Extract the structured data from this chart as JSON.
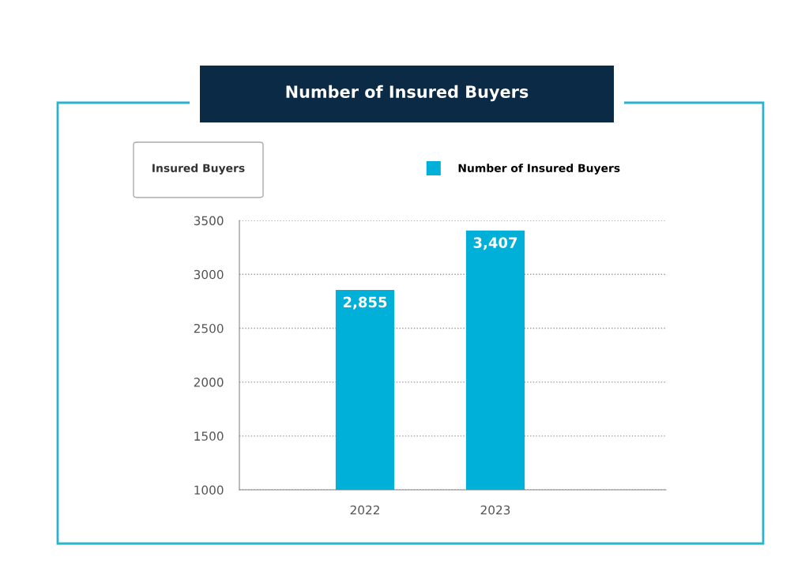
{
  "chart_data": {
    "type": "bar",
    "title": "Number of Insured Buyers",
    "ylabel": "Insured Buyers",
    "categories": [
      "2022",
      "2023"
    ],
    "series": [
      {
        "name": "Number of Insured Buyers",
        "color": "#00b0d8",
        "values": [
          2855,
          3407
        ]
      }
    ],
    "value_labels": [
      "2,855",
      "3,407"
    ],
    "ylim": [
      1000,
      3500
    ],
    "yticks": [
      1000,
      1500,
      2000,
      2500,
      3000,
      3500
    ],
    "grid": "y",
    "legend": "top right"
  }
}
